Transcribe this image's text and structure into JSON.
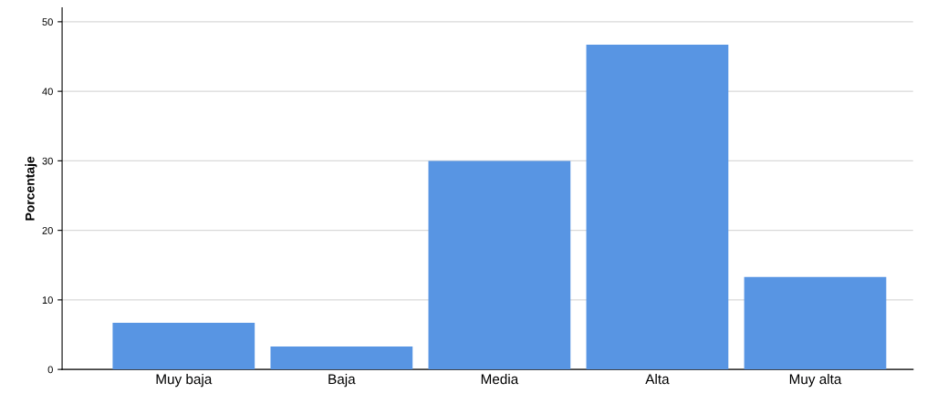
{
  "chart_data": {
    "type": "bar",
    "ylabel": "Porcentaje",
    "categories": [
      "Muy baja",
      "Baja",
      "Media",
      "Alta",
      "Muy alta"
    ],
    "values": [
      6.7,
      3.3,
      30.0,
      46.7,
      13.3
    ],
    "color": "#5895e3",
    "ylim": [
      0,
      52
    ],
    "yticks": [
      0,
      10,
      20,
      30,
      40,
      50
    ],
    "grid": "y"
  }
}
